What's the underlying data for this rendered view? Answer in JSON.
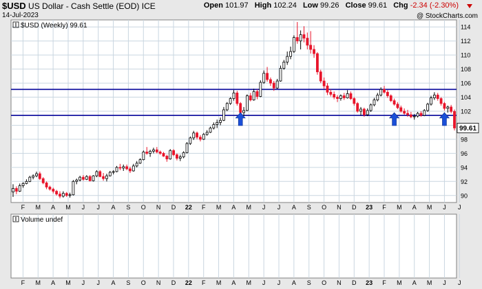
{
  "header": {
    "symbol": "$USD",
    "name": "US Dollar - Cash Settle (EOD)",
    "exchange": "ICE",
    "date": "14-Jul-2023",
    "watermark": "@ StockCharts.com",
    "open_label": "Open",
    "open": "101.97",
    "high_label": "High",
    "high": "102.24",
    "low_label": "Low",
    "low": "99.26",
    "close_label": "Close",
    "close": "99.61",
    "chg_label": "Chg",
    "chg": "-2.34 (-2.30%)"
  },
  "colors": {
    "up": "#000000",
    "down": "#e8142a",
    "support": "#1414a0",
    "arrow": "#1a4fd8",
    "grid": "#c9d6e0"
  },
  "chart_data": {
    "type": "candlestick",
    "legend": "$USD (Weekly) 99.61",
    "price_label": "99.61",
    "ylim": [
      89,
      115
    ],
    "y_ticks": [
      90,
      92,
      94,
      96,
      98,
      100,
      102,
      104,
      106,
      108,
      110,
      112,
      114
    ],
    "x_labels": [
      "F",
      "M",
      "A",
      "M",
      "J",
      "J",
      "A",
      "S",
      "O",
      "N",
      "D",
      "22",
      "F",
      "M",
      "A",
      "M",
      "J",
      "J",
      "A",
      "S",
      "O",
      "N",
      "D",
      "23",
      "F",
      "M",
      "A",
      "M",
      "J",
      "J"
    ],
    "horizontal_lines": [
      105.1,
      101.4
    ],
    "arrows_at_week": [
      68,
      114,
      129
    ],
    "bars": [
      {
        "o": 90.5,
        "h": 91.6,
        "l": 89.8,
        "c": 91.0
      },
      {
        "o": 91.0,
        "h": 91.3,
        "l": 90.2,
        "c": 90.6
      },
      {
        "o": 90.6,
        "h": 91.7,
        "l": 90.5,
        "c": 91.4
      },
      {
        "o": 91.4,
        "h": 91.9,
        "l": 91.1,
        "c": 91.7
      },
      {
        "o": 91.7,
        "h": 92.3,
        "l": 91.6,
        "c": 92.0
      },
      {
        "o": 92.0,
        "h": 92.8,
        "l": 91.9,
        "c": 92.6
      },
      {
        "o": 92.6,
        "h": 93.0,
        "l": 92.3,
        "c": 92.8
      },
      {
        "o": 92.8,
        "h": 93.4,
        "l": 92.6,
        "c": 93.1
      },
      {
        "o": 93.1,
        "h": 93.4,
        "l": 92.2,
        "c": 92.4
      },
      {
        "o": 92.4,
        "h": 92.6,
        "l": 91.6,
        "c": 91.8
      },
      {
        "o": 91.8,
        "h": 92.0,
        "l": 90.9,
        "c": 91.2
      },
      {
        "o": 91.2,
        "h": 91.4,
        "l": 90.7,
        "c": 90.9
      },
      {
        "o": 90.9,
        "h": 91.1,
        "l": 90.3,
        "c": 90.6
      },
      {
        "o": 90.6,
        "h": 90.8,
        "l": 90.0,
        "c": 90.2
      },
      {
        "o": 90.2,
        "h": 90.6,
        "l": 89.6,
        "c": 89.9
      },
      {
        "o": 89.9,
        "h": 90.6,
        "l": 89.7,
        "c": 90.3
      },
      {
        "o": 90.3,
        "h": 90.5,
        "l": 89.8,
        "c": 90.0
      },
      {
        "o": 90.0,
        "h": 90.4,
        "l": 89.7,
        "c": 90.1
      },
      {
        "o": 90.1,
        "h": 92.2,
        "l": 90.0,
        "c": 92.0
      },
      {
        "o": 92.0,
        "h": 92.4,
        "l": 91.6,
        "c": 92.2
      },
      {
        "o": 92.2,
        "h": 92.8,
        "l": 92.0,
        "c": 92.6
      },
      {
        "o": 92.6,
        "h": 92.9,
        "l": 92.1,
        "c": 92.3
      },
      {
        "o": 92.3,
        "h": 92.9,
        "l": 92.2,
        "c": 92.7
      },
      {
        "o": 92.7,
        "h": 92.9,
        "l": 92.0,
        "c": 92.1
      },
      {
        "o": 92.1,
        "h": 92.9,
        "l": 92.0,
        "c": 92.8
      },
      {
        "o": 92.8,
        "h": 93.6,
        "l": 92.6,
        "c": 93.4
      },
      {
        "o": 93.4,
        "h": 93.6,
        "l": 92.6,
        "c": 92.7
      },
      {
        "o": 92.7,
        "h": 93.2,
        "l": 92.1,
        "c": 92.4
      },
      {
        "o": 92.4,
        "h": 93.1,
        "l": 92.0,
        "c": 92.8
      },
      {
        "o": 92.8,
        "h": 93.5,
        "l": 92.7,
        "c": 93.3
      },
      {
        "o": 93.3,
        "h": 93.6,
        "l": 93.0,
        "c": 93.4
      },
      {
        "o": 93.4,
        "h": 94.2,
        "l": 93.3,
        "c": 94.0
      },
      {
        "o": 94.0,
        "h": 94.5,
        "l": 93.6,
        "c": 93.9
      },
      {
        "o": 93.9,
        "h": 94.4,
        "l": 93.5,
        "c": 94.1
      },
      {
        "o": 94.1,
        "h": 94.4,
        "l": 93.6,
        "c": 93.8
      },
      {
        "o": 93.8,
        "h": 94.1,
        "l": 93.2,
        "c": 93.5
      },
      {
        "o": 93.5,
        "h": 94.5,
        "l": 93.4,
        "c": 94.2
      },
      {
        "o": 94.2,
        "h": 94.9,
        "l": 94.0,
        "c": 94.6
      },
      {
        "o": 94.6,
        "h": 95.3,
        "l": 94.5,
        "c": 95.1
      },
      {
        "o": 95.1,
        "h": 96.4,
        "l": 95.0,
        "c": 96.2
      },
      {
        "o": 96.2,
        "h": 96.9,
        "l": 95.8,
        "c": 96.0
      },
      {
        "o": 96.0,
        "h": 96.5,
        "l": 95.5,
        "c": 96.3
      },
      {
        "o": 96.3,
        "h": 96.8,
        "l": 96.0,
        "c": 96.5
      },
      {
        "o": 96.5,
        "h": 96.9,
        "l": 96.0,
        "c": 96.2
      },
      {
        "o": 96.2,
        "h": 96.4,
        "l": 95.8,
        "c": 96.0
      },
      {
        "o": 96.0,
        "h": 96.2,
        "l": 95.5,
        "c": 95.6
      },
      {
        "o": 95.6,
        "h": 95.8,
        "l": 94.8,
        "c": 95.2
      },
      {
        "o": 95.2,
        "h": 96.6,
        "l": 95.1,
        "c": 96.4
      },
      {
        "o": 96.4,
        "h": 96.6,
        "l": 95.6,
        "c": 95.8
      },
      {
        "o": 95.8,
        "h": 96.0,
        "l": 95.0,
        "c": 95.3
      },
      {
        "o": 95.3,
        "h": 95.8,
        "l": 94.9,
        "c": 95.5
      },
      {
        "o": 95.5,
        "h": 96.3,
        "l": 95.3,
        "c": 96.1
      },
      {
        "o": 96.1,
        "h": 97.6,
        "l": 96.0,
        "c": 97.4
      },
      {
        "o": 97.4,
        "h": 98.4,
        "l": 97.2,
        "c": 98.2
      },
      {
        "o": 98.2,
        "h": 99.2,
        "l": 97.9,
        "c": 98.9
      },
      {
        "o": 98.9,
        "h": 99.1,
        "l": 98.0,
        "c": 98.3
      },
      {
        "o": 98.3,
        "h": 98.6,
        "l": 97.7,
        "c": 98.0
      },
      {
        "o": 98.0,
        "h": 98.9,
        "l": 97.9,
        "c": 98.7
      },
      {
        "o": 98.7,
        "h": 99.3,
        "l": 98.5,
        "c": 99.0
      },
      {
        "o": 99.0,
        "h": 99.8,
        "l": 98.9,
        "c": 99.6
      },
      {
        "o": 99.6,
        "h": 100.4,
        "l": 99.4,
        "c": 100.1
      },
      {
        "o": 100.1,
        "h": 100.8,
        "l": 99.6,
        "c": 100.4
      },
      {
        "o": 100.4,
        "h": 101.1,
        "l": 100.0,
        "c": 100.7
      },
      {
        "o": 100.7,
        "h": 102.6,
        "l": 100.6,
        "c": 102.2
      },
      {
        "o": 102.2,
        "h": 103.3,
        "l": 102.0,
        "c": 103.1
      },
      {
        "o": 103.1,
        "h": 104.0,
        "l": 102.9,
        "c": 103.8
      },
      {
        "o": 103.8,
        "h": 105.0,
        "l": 103.5,
        "c": 104.6
      },
      {
        "o": 104.6,
        "h": 104.9,
        "l": 102.8,
        "c": 103.1
      },
      {
        "o": 103.1,
        "h": 103.3,
        "l": 101.6,
        "c": 101.8
      },
      {
        "o": 101.8,
        "h": 102.6,
        "l": 101.3,
        "c": 102.1
      },
      {
        "o": 102.1,
        "h": 104.4,
        "l": 102.0,
        "c": 104.2
      },
      {
        "o": 104.2,
        "h": 104.6,
        "l": 103.4,
        "c": 103.6
      },
      {
        "o": 103.6,
        "h": 105.2,
        "l": 103.5,
        "c": 104.8
      },
      {
        "o": 104.8,
        "h": 105.1,
        "l": 103.7,
        "c": 104.1
      },
      {
        "o": 104.1,
        "h": 106.4,
        "l": 104.0,
        "c": 106.1
      },
      {
        "o": 106.1,
        "h": 107.8,
        "l": 105.9,
        "c": 107.4
      },
      {
        "o": 107.4,
        "h": 108.3,
        "l": 106.2,
        "c": 106.5
      },
      {
        "o": 106.5,
        "h": 106.8,
        "l": 105.6,
        "c": 106.0
      },
      {
        "o": 106.0,
        "h": 106.3,
        "l": 104.9,
        "c": 105.3
      },
      {
        "o": 105.3,
        "h": 106.6,
        "l": 105.2,
        "c": 106.3
      },
      {
        "o": 106.3,
        "h": 108.5,
        "l": 106.2,
        "c": 108.1
      },
      {
        "o": 108.1,
        "h": 109.3,
        "l": 107.9,
        "c": 109.0
      },
      {
        "o": 109.0,
        "h": 110.5,
        "l": 108.6,
        "c": 109.8
      },
      {
        "o": 109.8,
        "h": 111.2,
        "l": 109.4,
        "c": 110.5
      },
      {
        "o": 110.5,
        "h": 112.8,
        "l": 110.3,
        "c": 112.5
      },
      {
        "o": 112.5,
        "h": 114.7,
        "l": 111.6,
        "c": 112.0
      },
      {
        "o": 112.0,
        "h": 113.5,
        "l": 110.8,
        "c": 112.9
      },
      {
        "o": 112.9,
        "h": 114.1,
        "l": 111.8,
        "c": 112.4
      },
      {
        "o": 112.4,
        "h": 113.2,
        "l": 110.8,
        "c": 111.4
      },
      {
        "o": 111.4,
        "h": 113.4,
        "l": 110.2,
        "c": 110.8
      },
      {
        "o": 110.8,
        "h": 111.4,
        "l": 109.6,
        "c": 110.2
      },
      {
        "o": 110.2,
        "h": 110.4,
        "l": 107.2,
        "c": 107.6
      },
      {
        "o": 107.6,
        "h": 107.9,
        "l": 106.0,
        "c": 106.3
      },
      {
        "o": 106.3,
        "h": 106.8,
        "l": 105.2,
        "c": 105.6
      },
      {
        "o": 105.6,
        "h": 106.0,
        "l": 104.3,
        "c": 104.7
      },
      {
        "o": 104.7,
        "h": 105.1,
        "l": 104.1,
        "c": 104.4
      },
      {
        "o": 104.4,
        "h": 104.8,
        "l": 103.7,
        "c": 104.0
      },
      {
        "o": 104.0,
        "h": 104.3,
        "l": 103.3,
        "c": 103.8
      },
      {
        "o": 103.8,
        "h": 104.4,
        "l": 103.5,
        "c": 104.2
      },
      {
        "o": 104.2,
        "h": 104.6,
        "l": 103.6,
        "c": 103.9
      },
      {
        "o": 103.9,
        "h": 105.0,
        "l": 103.8,
        "c": 104.5
      },
      {
        "o": 104.5,
        "h": 104.8,
        "l": 103.6,
        "c": 103.8
      },
      {
        "o": 103.8,
        "h": 104.0,
        "l": 102.8,
        "c": 103.1
      },
      {
        "o": 103.1,
        "h": 103.3,
        "l": 101.8,
        "c": 102.0
      },
      {
        "o": 102.0,
        "h": 102.6,
        "l": 101.4,
        "c": 102.3
      },
      {
        "o": 102.3,
        "h": 102.5,
        "l": 101.2,
        "c": 101.5
      },
      {
        "o": 101.5,
        "h": 102.4,
        "l": 101.3,
        "c": 102.1
      },
      {
        "o": 102.1,
        "h": 103.1,
        "l": 101.9,
        "c": 102.9
      },
      {
        "o": 102.9,
        "h": 103.9,
        "l": 102.7,
        "c": 103.6
      },
      {
        "o": 103.6,
        "h": 104.6,
        "l": 103.4,
        "c": 104.3
      },
      {
        "o": 104.3,
        "h": 105.4,
        "l": 104.1,
        "c": 105.1
      },
      {
        "o": 105.1,
        "h": 105.6,
        "l": 104.5,
        "c": 104.7
      },
      {
        "o": 104.7,
        "h": 105.0,
        "l": 103.9,
        "c": 104.2
      },
      {
        "o": 104.2,
        "h": 104.4,
        "l": 103.3,
        "c": 103.5
      },
      {
        "o": 103.5,
        "h": 103.8,
        "l": 102.8,
        "c": 103.0
      },
      {
        "o": 103.0,
        "h": 103.3,
        "l": 102.3,
        "c": 102.5
      },
      {
        "o": 102.5,
        "h": 102.8,
        "l": 101.8,
        "c": 102.0
      },
      {
        "o": 102.0,
        "h": 102.4,
        "l": 101.5,
        "c": 101.7
      },
      {
        "o": 101.7,
        "h": 102.2,
        "l": 101.2,
        "c": 101.5
      },
      {
        "o": 101.5,
        "h": 101.9,
        "l": 101.0,
        "c": 101.2
      },
      {
        "o": 101.2,
        "h": 101.6,
        "l": 100.8,
        "c": 101.3
      },
      {
        "o": 101.3,
        "h": 101.9,
        "l": 101.1,
        "c": 101.7
      },
      {
        "o": 101.7,
        "h": 102.0,
        "l": 101.2,
        "c": 101.4
      },
      {
        "o": 101.4,
        "h": 102.3,
        "l": 101.3,
        "c": 102.1
      },
      {
        "o": 102.1,
        "h": 103.2,
        "l": 101.9,
        "c": 103.0
      },
      {
        "o": 103.0,
        "h": 104.2,
        "l": 102.8,
        "c": 103.9
      },
      {
        "o": 103.9,
        "h": 104.7,
        "l": 103.6,
        "c": 104.3
      },
      {
        "o": 104.3,
        "h": 104.6,
        "l": 103.5,
        "c": 103.8
      },
      {
        "o": 103.8,
        "h": 104.0,
        "l": 102.8,
        "c": 103.1
      },
      {
        "o": 103.1,
        "h": 103.3,
        "l": 102.1,
        "c": 102.4
      },
      {
        "o": 102.4,
        "h": 102.8,
        "l": 101.8,
        "c": 102.6
      },
      {
        "o": 102.6,
        "h": 102.9,
        "l": 101.7,
        "c": 101.97
      },
      {
        "o": 101.97,
        "h": 102.24,
        "l": 99.26,
        "c": 99.61
      }
    ]
  },
  "volume_panel": {
    "legend": "Volume undef"
  }
}
